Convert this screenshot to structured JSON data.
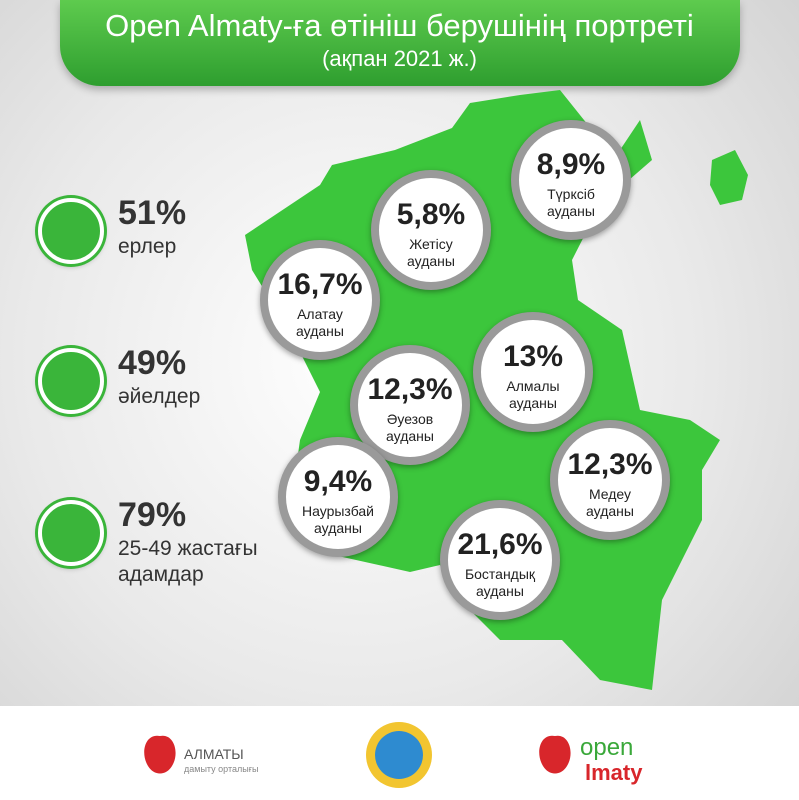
{
  "header": {
    "title": "Open Almaty-ға өтініш берушінің портреті",
    "subtitle": "(ақпан 2021 ж.)"
  },
  "stats": [
    {
      "value": "51%",
      "label": "ерлер"
    },
    {
      "value": "49%",
      "label": "әйелдер"
    },
    {
      "value": "79%",
      "label": "25-49 жастағы адамдар"
    }
  ],
  "districts": [
    {
      "value": "8,9%",
      "name": "Түрксіб",
      "suffix": "ауданы"
    },
    {
      "value": "5,8%",
      "name": "Жетісу",
      "suffix": "ауданы"
    },
    {
      "value": "16,7%",
      "name": "Алатау",
      "suffix": "ауданы"
    },
    {
      "value": "13%",
      "name": "Алмалы",
      "suffix": "ауданы"
    },
    {
      "value": "12,3%",
      "name": "Әуезов",
      "suffix": "ауданы"
    },
    {
      "value": "9,4%",
      "name": "Наурызбай",
      "suffix": "ауданы"
    },
    {
      "value": "12,3%",
      "name": "Медеу",
      "suffix": "ауданы"
    },
    {
      "value": "21,6%",
      "name": "Бостандық",
      "suffix": "ауданы"
    }
  ],
  "footer": {
    "left_logo": "АЛМАТЫ",
    "left_logo_sub": "дамыту орталығы",
    "right_logo_top": "open",
    "right_logo_bottom": "lmaty"
  }
}
